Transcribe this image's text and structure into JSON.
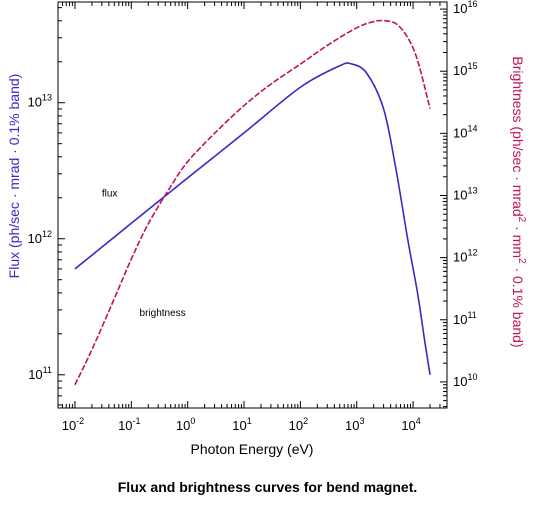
{
  "caption": "Flux and brightness curves for bend magnet.",
  "colors": {
    "flux": "#3a28c8",
    "brightness": "#c0135a",
    "axis": "#000000"
  },
  "chart_data": {
    "type": "line",
    "title": "",
    "xlabel": "Photon Energy (eV)",
    "xscale": "log",
    "xlim": [
      0.005,
      40000
    ],
    "xticks": [
      {
        "base": "10",
        "exp": "-2",
        "value": 0.01
      },
      {
        "base": "10",
        "exp": "-1",
        "value": 0.1
      },
      {
        "base": "10",
        "exp": "0",
        "value": 1
      },
      {
        "base": "10",
        "exp": "1",
        "value": 10
      },
      {
        "base": "10",
        "exp": "2",
        "value": 100
      },
      {
        "base": "10",
        "exp": "3",
        "value": 1000
      },
      {
        "base": "10",
        "exp": "4",
        "value": 10000
      }
    ],
    "y_left": {
      "label": "Flux (ph/sec · mrad · 0.1% band)",
      "scale": "log",
      "ylim": [
        57000000000,
        55000000000000
      ],
      "ticks": [
        {
          "base": "10",
          "exp": "11",
          "value": 100000000000
        },
        {
          "base": "10",
          "exp": "12",
          "value": 1000000000000
        },
        {
          "base": "10",
          "exp": "13",
          "value": 10000000000000
        }
      ]
    },
    "y_right": {
      "label_parts": [
        "Brightness (ph/sec · mrad",
        "2",
        " · mm",
        "2",
        " · 0.1% band)"
      ],
      "scale": "log",
      "ylim": [
        3800000000,
        13000000000000000
      ],
      "ticks": [
        {
          "base": "10",
          "exp": "10",
          "value": 10000000000
        },
        {
          "base": "10",
          "exp": "11",
          "value": 100000000000
        },
        {
          "base": "10",
          "exp": "12",
          "value": 1000000000000
        },
        {
          "base": "10",
          "exp": "13",
          "value": 10000000000000
        },
        {
          "base": "10",
          "exp": "14",
          "value": 100000000000000
        },
        {
          "base": "10",
          "exp": "15",
          "value": 1000000000000000
        },
        {
          "base": "10",
          "exp": "16",
          "value": 10000000000000000
        }
      ]
    },
    "grid": false,
    "legend": "none",
    "series": [
      {
        "axis": "left",
        "style": "solid",
        "x": [
          0.01,
          0.1,
          1,
          10,
          100,
          500,
          800,
          1500,
          3000,
          5000,
          8000,
          12000,
          16000,
          20000
        ],
        "y": [
          600000000000,
          1300000000000,
          2800000000000,
          6000000000000,
          13000000000000,
          18700000000000,
          19300000000000,
          16500000000000,
          9000000000000,
          3200000000000,
          1000000000000,
          400000000000,
          180000000000,
          100000000000
        ]
      },
      {
        "axis": "right",
        "style": "dashed",
        "x": [
          0.01,
          0.02,
          0.05,
          0.1,
          0.2,
          0.5,
          1,
          3,
          10,
          30,
          100,
          300,
          1000,
          2000,
          3000,
          5000,
          8000,
          12000,
          20000
        ],
        "y": [
          9000000000,
          33000000000,
          220000000000,
          950000000000,
          3500000000000,
          14000000000000,
          35000000000000,
          100000000000000,
          280000000000000,
          620000000000000,
          1300000000000000,
          2600000000000000,
          5000000000000000,
          6300000000000000,
          6500000000000000,
          5800000000000000,
          3500000000000000,
          1500000000000000,
          250000000000000
        ]
      }
    ],
    "annotations": [
      {
        "text": "flux",
        "x": 0.03,
        "axis": "left",
        "y": 2050000000000
      },
      {
        "text": "brightness",
        "x": 0.14,
        "axis": "left",
        "y": 270000000000
      }
    ]
  }
}
